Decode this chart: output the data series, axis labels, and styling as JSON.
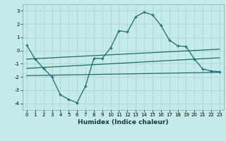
{
  "xlabel": "Humidex (Indice chaleur)",
  "background_color": "#c5eaea",
  "grid_color": "#aed4d4",
  "line_color": "#1a6b6b",
  "xlim": [
    -0.5,
    23.5
  ],
  "ylim": [
    -4.5,
    3.5
  ],
  "yticks": [
    -4,
    -3,
    -2,
    -1,
    0,
    1,
    2,
    3
  ],
  "xticks": [
    0,
    1,
    2,
    3,
    4,
    5,
    6,
    7,
    8,
    9,
    10,
    11,
    12,
    13,
    14,
    15,
    16,
    17,
    18,
    19,
    20,
    21,
    22,
    23
  ],
  "line1_x": [
    0,
    1,
    2,
    3,
    4,
    5,
    6,
    7,
    8,
    9,
    10,
    11,
    12,
    13,
    14,
    15,
    16,
    17,
    18,
    19,
    20,
    21,
    22,
    23
  ],
  "line1_y": [
    0.4,
    -0.65,
    -1.35,
    -2.0,
    -3.35,
    -3.7,
    -3.95,
    -2.7,
    -0.6,
    -0.6,
    0.2,
    1.5,
    1.4,
    2.55,
    2.9,
    2.7,
    1.9,
    0.8,
    0.35,
    0.3,
    -0.65,
    -1.4,
    -1.55,
    -1.6
  ],
  "line2_x": [
    0,
    23
  ],
  "line2_y": [
    -0.65,
    0.1
  ],
  "line3_x": [
    0,
    23
  ],
  "line3_y": [
    -1.35,
    -0.55
  ],
  "line4_x": [
    0,
    23
  ],
  "line4_y": [
    -1.9,
    -1.65
  ]
}
